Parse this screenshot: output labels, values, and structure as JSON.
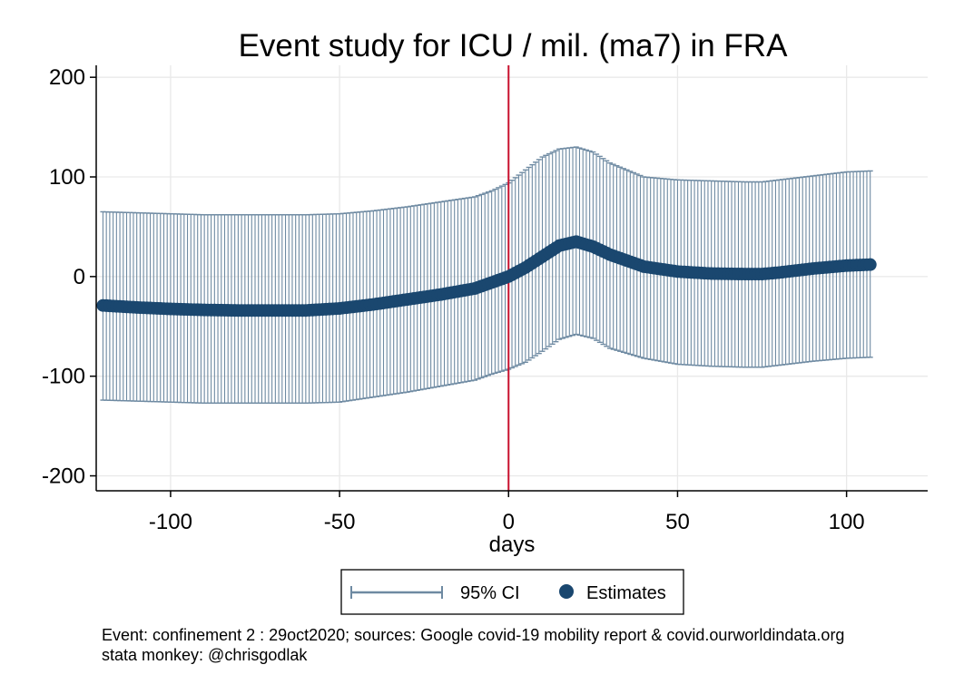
{
  "chart_data": {
    "type": "scatter",
    "title": "Event study for ICU / mil. (ma7) in FRA",
    "xlabel": "days",
    "ylabel": "",
    "xlim": [
      -122,
      124
    ],
    "ylim": [
      -215,
      212
    ],
    "xticks": [
      -100,
      -50,
      0,
      50,
      100
    ],
    "yticks": [
      -200,
      -100,
      0,
      100,
      200
    ],
    "xtick_labels": [
      "-100",
      "-50",
      "0",
      "50",
      "100"
    ],
    "ytick_labels": [
      "-200",
      "-100",
      "0",
      "100",
      "200"
    ],
    "grid": true,
    "event_line": {
      "x": 0,
      "color": "#c8102e"
    },
    "series": [
      {
        "name": "95% CI",
        "kind": "errorbar",
        "color": "#6e8aa2"
      },
      {
        "name": "Estimates",
        "kind": "scatter",
        "color": "#1a476f"
      }
    ],
    "x": [
      -120,
      -110,
      -100,
      -90,
      -80,
      -70,
      -60,
      -50,
      -40,
      -30,
      -20,
      -10,
      -5,
      0,
      5,
      10,
      15,
      20,
      25,
      30,
      40,
      50,
      60,
      70,
      75,
      80,
      90,
      100,
      107
    ],
    "estimates": [
      -29,
      -31,
      -32.5,
      -33.5,
      -34,
      -34,
      -34,
      -32,
      -28,
      -23,
      -18,
      -12,
      -6,
      0,
      9,
      20,
      31,
      35,
      30,
      22,
      10,
      5,
      3,
      2.5,
      2.5,
      4,
      8,
      11,
      12
    ],
    "ci_upper": [
      65,
      64,
      63,
      62,
      62,
      62,
      62,
      63,
      66,
      70,
      75,
      80,
      86,
      94,
      107,
      120,
      128,
      130,
      125,
      114,
      100,
      97,
      96,
      95,
      95,
      97,
      101,
      105,
      106
    ],
    "ci_lower": [
      -124,
      -125,
      -126,
      -127,
      -127,
      -127,
      -127,
      -126,
      -121,
      -116,
      -110,
      -104,
      -98,
      -93,
      -86,
      -75,
      -63,
      -58,
      -62,
      -72,
      -82,
      -88,
      -90,
      -91,
      -91,
      -89,
      -85,
      -82,
      -81
    ],
    "legend": {
      "position": "bottom",
      "items": [
        "95% CI",
        "Estimates"
      ]
    }
  },
  "notes": {
    "line1": "Event: confinement 2 : 29oct2020; sources: Google covid-19 mobility report & covid.ourworldindata.org",
    "line2": "stata monkey: @chrisgodlak"
  }
}
